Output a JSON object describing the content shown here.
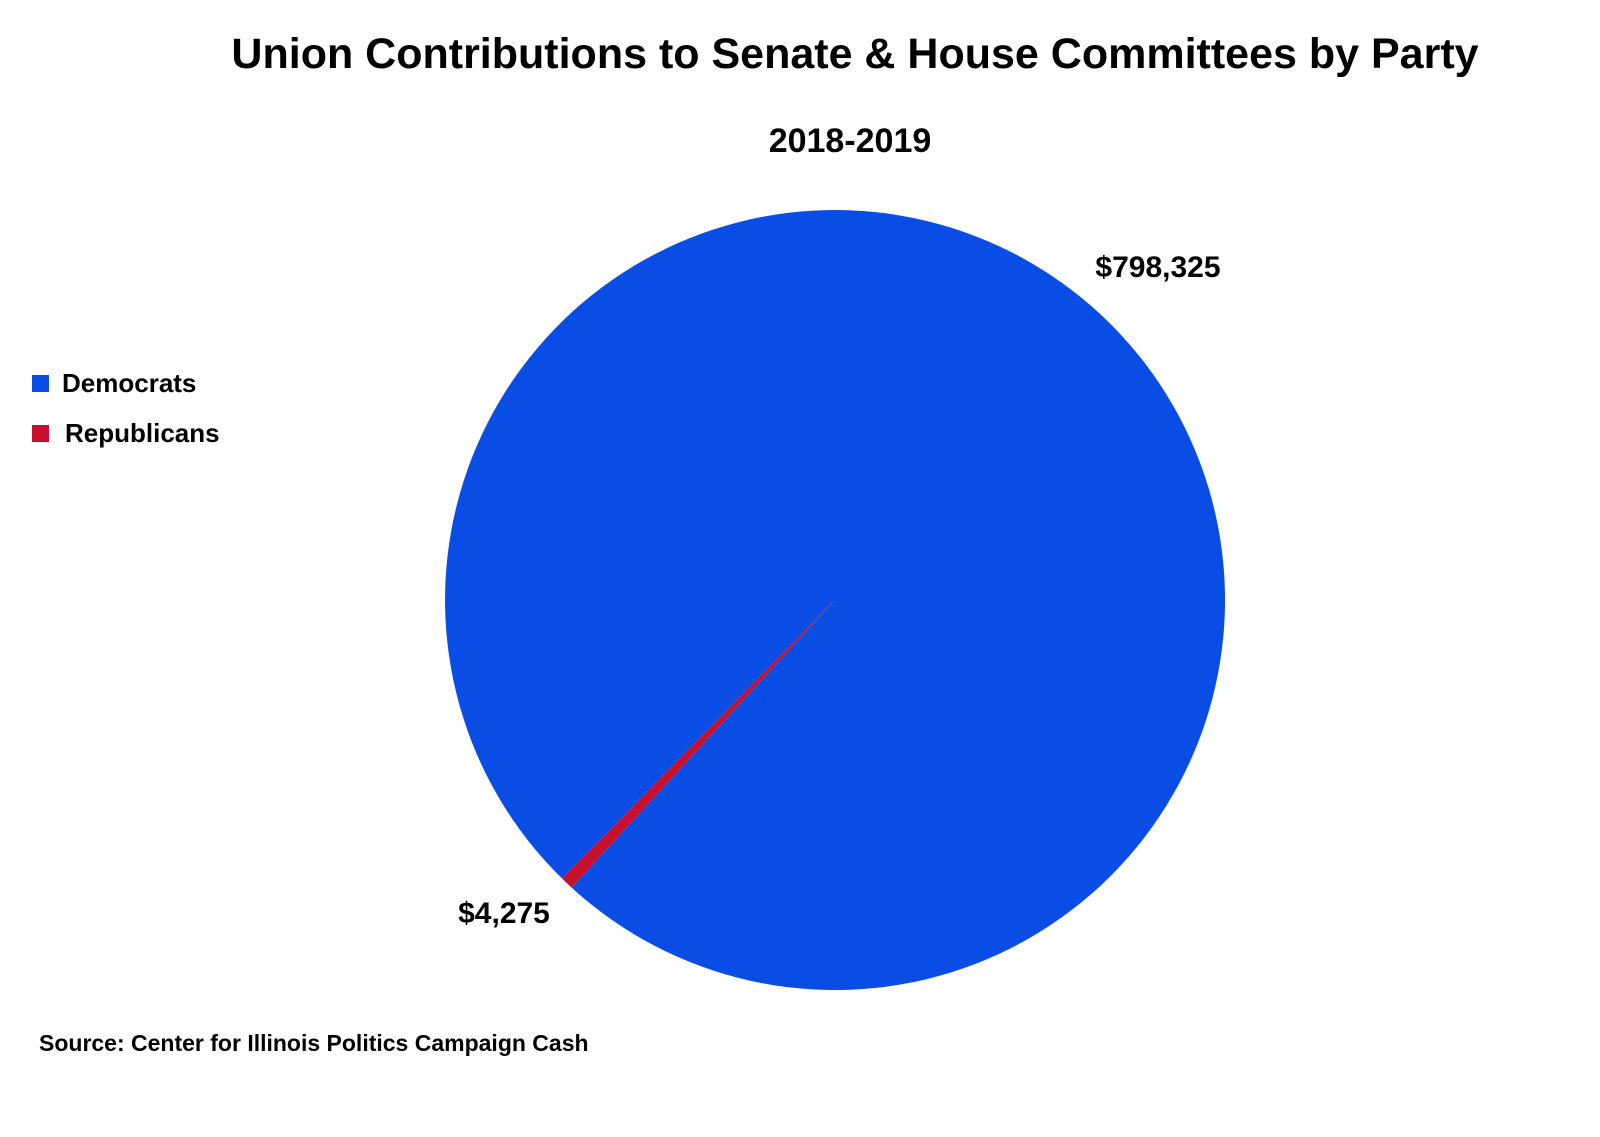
{
  "chart_data": {
    "type": "pie",
    "title": "Union Contributions to Senate & House Committees by Party",
    "subtitle": "2018-2019",
    "categories": [
      "Democrats",
      "Republicans"
    ],
    "values": [
      798325,
      4275
    ],
    "value_labels": [
      "$798,325",
      "$4,275"
    ],
    "colors": [
      "#0A4DE4",
      "#C8102E"
    ],
    "legend_position": "left",
    "source": "Source: Center for Illinois Politics Campaign Cash"
  }
}
